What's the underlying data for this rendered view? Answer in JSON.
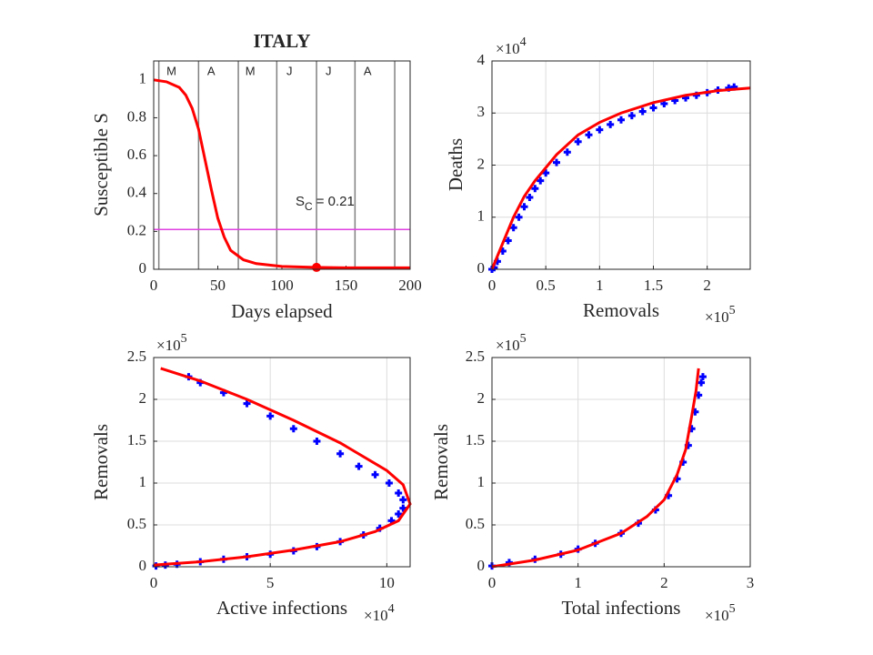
{
  "chart_data": [
    {
      "type": "line",
      "title": "ITALY",
      "xlabel": "Days elapsed",
      "ylabel": "Susceptible S",
      "xlim": [
        0,
        200
      ],
      "ylim": [
        0,
        1.1
      ],
      "xticks": [
        0,
        50,
        100,
        150,
        200
      ],
      "yticks": [
        0,
        0.2,
        0.4,
        0.6,
        0.8,
        1
      ],
      "grid": false,
      "month_lines": [
        4,
        35,
        66,
        96,
        127,
        157,
        188
      ],
      "month_labels": [
        "M",
        "A",
        "M",
        "J",
        "J",
        "A"
      ],
      "sc": 0.21,
      "sc_color": "#e040e0",
      "annotation": {
        "main": "S",
        "sub": "C",
        "tail": "= 0.21"
      },
      "critical_point": {
        "x": 127,
        "y": 0.01,
        "color": "#ff0000"
      },
      "series": [
        {
          "color": "#ff0000",
          "style": "line",
          "x": [
            0,
            10,
            20,
            25,
            30,
            35,
            40,
            45,
            50,
            55,
            60,
            70,
            80,
            100,
            125,
            150,
            200
          ],
          "values": [
            1,
            0.99,
            0.96,
            0.92,
            0.85,
            0.74,
            0.58,
            0.42,
            0.27,
            0.17,
            0.1,
            0.05,
            0.03,
            0.015,
            0.01,
            0.008,
            0.008
          ]
        }
      ]
    },
    {
      "type": "line",
      "xlabel": "Removals",
      "ylabel": "Deaths",
      "xlim": [
        0,
        240000
      ],
      "ylim": [
        0,
        40000
      ],
      "xticks": [
        0,
        {
          "value": 50000,
          "label": "0.5"
        },
        {
          "value": 100000,
          "label": "1"
        },
        {
          "value": 150000,
          "label": "1.5"
        },
        {
          "value": 200000,
          "label": "2"
        }
      ],
      "yticks": [
        0,
        {
          "value": 10000,
          "label": "1"
        },
        {
          "value": 20000,
          "label": "2"
        },
        {
          "value": 30000,
          "label": "3"
        },
        {
          "value": 40000,
          "label": "4"
        }
      ],
      "grid": true,
      "xexp": {
        "base": "×10",
        "power": "5"
      },
      "yexp": {
        "base": "×10",
        "power": "4"
      },
      "series": [
        {
          "color": "#0000ff",
          "style": "marker",
          "x": [
            0,
            2000,
            5000,
            10000,
            15000,
            20000,
            25000,
            30000,
            35000,
            40000,
            45000,
            50000,
            60000,
            70000,
            80000,
            90000,
            100000,
            110000,
            120000,
            130000,
            140000,
            150000,
            160000,
            170000,
            180000,
            190000,
            200000,
            210000,
            220000,
            225000
          ],
          "values": [
            0,
            300,
            1500,
            3500,
            5500,
            8000,
            10000,
            12000,
            13800,
            15500,
            17000,
            18500,
            20500,
            22500,
            24500,
            25800,
            26800,
            27800,
            28700,
            29500,
            30300,
            31000,
            31800,
            32400,
            32900,
            33400,
            33900,
            34400,
            34800,
            35000
          ]
        },
        {
          "color": "#ff0000",
          "style": "line",
          "x": [
            0,
            10000,
            20000,
            30000,
            40000,
            50000,
            60000,
            80000,
            100000,
            120000,
            150000,
            180000,
            210000,
            240000
          ],
          "values": [
            0,
            5000,
            10000,
            14000,
            17000,
            19500,
            22000,
            25800,
            28200,
            30000,
            32000,
            33400,
            34300,
            34800
          ]
        }
      ]
    },
    {
      "type": "line",
      "xlabel": "Active infections",
      "ylabel": "Removals",
      "xlim": [
        0,
        110000
      ],
      "ylim": [
        0,
        250000
      ],
      "xticks": [
        0,
        {
          "value": 50000,
          "label": "5"
        },
        {
          "value": 100000,
          "label": "10"
        }
      ],
      "yticks": [
        0,
        {
          "value": 50000,
          "label": "0.5"
        },
        {
          "value": 100000,
          "label": "1"
        },
        {
          "value": 150000,
          "label": "1.5"
        },
        {
          "value": 200000,
          "label": "2"
        },
        {
          "value": 250000,
          "label": "2.5"
        }
      ],
      "grid": true,
      "xexp": {
        "base": "×10",
        "power": "4"
      },
      "yexp": {
        "base": "×10",
        "power": "5"
      },
      "series": [
        {
          "color": "#0000ff",
          "style": "marker",
          "x": [
            1000,
            5000,
            10000,
            20000,
            30000,
            40000,
            50000,
            60000,
            70000,
            80000,
            90000,
            97000,
            102000,
            105000,
            107000,
            107000,
            105000,
            101000,
            95000,
            88000,
            80000,
            70000,
            60000,
            50000,
            40000,
            30000,
            20000,
            15000
          ],
          "values": [
            1000,
            2000,
            3000,
            6000,
            9000,
            12000,
            15000,
            19000,
            24000,
            30000,
            38000,
            46000,
            55000,
            63000,
            70000,
            80000,
            88000,
            100000,
            110000,
            120000,
            135000,
            150000,
            165000,
            180000,
            195000,
            208000,
            220000,
            227000
          ]
        },
        {
          "color": "#ff0000",
          "style": "line",
          "x": [
            0,
            20000,
            40000,
            60000,
            80000,
            95000,
            105000,
            110000,
            107000,
            100000,
            80000,
            60000,
            40000,
            20000,
            3000
          ],
          "values": [
            2000,
            6000,
            12000,
            20000,
            30000,
            42000,
            55000,
            75000,
            98000,
            115000,
            148000,
            175000,
            200000,
            222000,
            237000
          ]
        }
      ]
    },
    {
      "type": "line",
      "xlabel": "Total infections",
      "ylabel": "Removals",
      "xlim": [
        0,
        300000
      ],
      "ylim": [
        0,
        250000
      ],
      "xticks": [
        0,
        {
          "value": 100000,
          "label": "1"
        },
        {
          "value": 200000,
          "label": "2"
        },
        {
          "value": 300000,
          "label": "3"
        }
      ],
      "yticks": [
        0,
        {
          "value": 50000,
          "label": "0.5"
        },
        {
          "value": 100000,
          "label": "1"
        },
        {
          "value": 150000,
          "label": "1.5"
        },
        {
          "value": 200000,
          "label": "2"
        },
        {
          "value": 250000,
          "label": "2.5"
        }
      ],
      "grid": true,
      "xexp": {
        "base": "×10",
        "power": "5"
      },
      "yexp": {
        "base": "×10",
        "power": "5"
      },
      "series": [
        {
          "color": "#0000ff",
          "style": "marker",
          "x": [
            0,
            20000,
            50000,
            80000,
            100000,
            120000,
            150000,
            170000,
            190000,
            205000,
            215000,
            222000,
            228000,
            232000,
            236000,
            240000,
            243000,
            245000
          ],
          "values": [
            1000,
            5000,
            9000,
            15000,
            21000,
            28000,
            40000,
            52000,
            68000,
            85000,
            105000,
            125000,
            145000,
            165000,
            185000,
            205000,
            220000,
            227000
          ]
        },
        {
          "color": "#ff0000",
          "style": "line",
          "x": [
            0,
            50000,
            100000,
            150000,
            180000,
            200000,
            215000,
            225000,
            232000,
            237000,
            240000
          ],
          "values": [
            0,
            8000,
            20000,
            40000,
            60000,
            80000,
            110000,
            140000,
            180000,
            210000,
            237000
          ]
        }
      ]
    }
  ]
}
